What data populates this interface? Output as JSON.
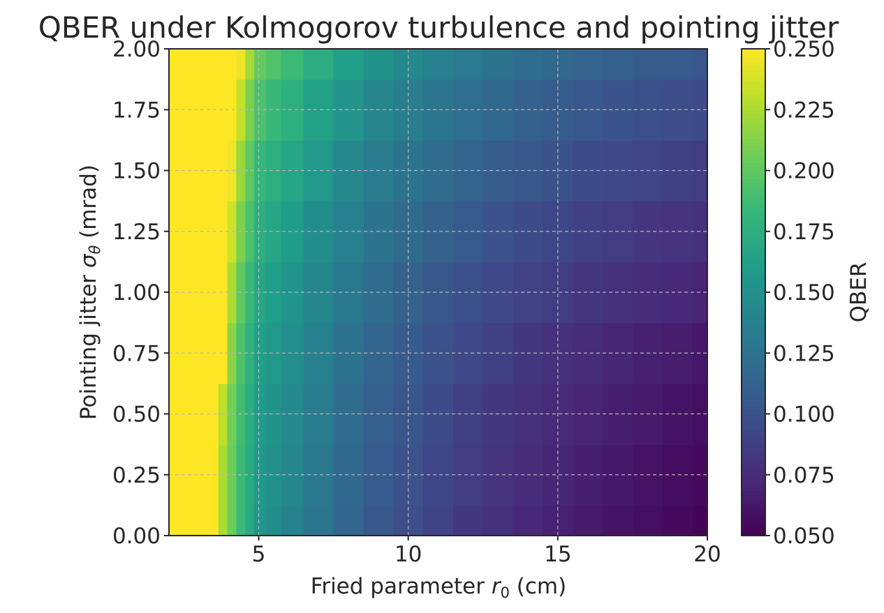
{
  "chart_data": {
    "type": "heatmap",
    "title": "QBER under Kolmogorov turbulence and pointing jitter",
    "xlabel": {
      "prefix": "Fried parameter ",
      "symbol": "r",
      "subscript": "0",
      "suffix": " (cm)"
    },
    "ylabel": {
      "prefix": "Pointing jitter ",
      "symbol": "σ",
      "subscript": "θ",
      "suffix": " (mrad)"
    },
    "xlim": [
      2,
      20
    ],
    "ylim": [
      0,
      2
    ],
    "xticks": [
      5,
      10,
      15,
      20
    ],
    "xtick_labels": [
      "5",
      "10",
      "15",
      "20"
    ],
    "yticks": [
      0,
      0.25,
      0.5,
      0.75,
      1.0,
      1.25,
      1.5,
      1.75,
      2.0
    ],
    "ytick_labels": [
      "0.00",
      "0.25",
      "0.50",
      "0.75",
      "1.00",
      "1.25",
      "1.50",
      "1.75",
      "2.00"
    ],
    "grid": true,
    "colormap": "viridis",
    "colorbar": {
      "label": "QBER",
      "range": [
        0.05,
        0.25
      ],
      "ticks": [
        0.05,
        0.075,
        0.1,
        0.125,
        0.15,
        0.175,
        0.2,
        0.225,
        0.25
      ],
      "tick_labels": [
        "0.050",
        "0.075",
        "0.100",
        "0.125",
        "0.150",
        "0.175",
        "0.200",
        "0.225",
        "0.250"
      ]
    },
    "x_values": [
      2,
      2.5,
      3,
      3.5,
      3.8,
      4.1,
      4.4,
      4.7,
      5,
      5.5,
      6,
      7,
      8,
      9,
      10,
      11,
      12,
      13,
      14,
      15,
      16,
      17,
      18,
      19,
      20
    ],
    "y_values": [
      0,
      0.25,
      0.5,
      0.75,
      1.0,
      1.25,
      1.5,
      1.75,
      2.0
    ],
    "z_values": [
      [
        0.25,
        0.25,
        0.25,
        0.25,
        0.225,
        0.205,
        0.185,
        0.17,
        0.155,
        0.148,
        0.14,
        0.128,
        0.115,
        0.105,
        0.098,
        0.09,
        0.083,
        0.078,
        0.073,
        0.069,
        0.065,
        0.061,
        0.058,
        0.055,
        0.052
      ],
      [
        0.25,
        0.25,
        0.25,
        0.25,
        0.225,
        0.205,
        0.186,
        0.172,
        0.157,
        0.15,
        0.142,
        0.13,
        0.117,
        0.107,
        0.1,
        0.092,
        0.085,
        0.08,
        0.075,
        0.071,
        0.067,
        0.063,
        0.06,
        0.057,
        0.055
      ],
      [
        0.25,
        0.25,
        0.25,
        0.25,
        0.23,
        0.207,
        0.188,
        0.174,
        0.16,
        0.152,
        0.145,
        0.133,
        0.12,
        0.11,
        0.103,
        0.095,
        0.088,
        0.083,
        0.078,
        0.074,
        0.07,
        0.067,
        0.064,
        0.061,
        0.058
      ],
      [
        0.25,
        0.25,
        0.25,
        0.25,
        0.25,
        0.215,
        0.193,
        0.178,
        0.163,
        0.156,
        0.149,
        0.137,
        0.125,
        0.115,
        0.107,
        0.1,
        0.093,
        0.088,
        0.083,
        0.078,
        0.075,
        0.071,
        0.068,
        0.066,
        0.063
      ],
      [
        0.25,
        0.25,
        0.25,
        0.25,
        0.25,
        0.225,
        0.2,
        0.184,
        0.168,
        0.161,
        0.154,
        0.142,
        0.13,
        0.12,
        0.112,
        0.105,
        0.099,
        0.093,
        0.089,
        0.085,
        0.081,
        0.078,
        0.075,
        0.073,
        0.07
      ],
      [
        0.25,
        0.25,
        0.25,
        0.25,
        0.25,
        0.235,
        0.21,
        0.192,
        0.175,
        0.168,
        0.16,
        0.148,
        0.137,
        0.127,
        0.119,
        0.112,
        0.106,
        0.1,
        0.096,
        0.092,
        0.088,
        0.085,
        0.082,
        0.08,
        0.078
      ],
      [
        0.25,
        0.25,
        0.25,
        0.25,
        0.25,
        0.245,
        0.22,
        0.2,
        0.183,
        0.175,
        0.168,
        0.156,
        0.144,
        0.134,
        0.127,
        0.12,
        0.114,
        0.108,
        0.104,
        0.1,
        0.096,
        0.093,
        0.091,
        0.088,
        0.086
      ],
      [
        0.25,
        0.25,
        0.25,
        0.25,
        0.25,
        0.25,
        0.232,
        0.21,
        0.192,
        0.184,
        0.176,
        0.164,
        0.153,
        0.143,
        0.135,
        0.128,
        0.122,
        0.117,
        0.112,
        0.108,
        0.105,
        0.102,
        0.099,
        0.097,
        0.095
      ],
      [
        0.25,
        0.25,
        0.25,
        0.25,
        0.25,
        0.25,
        0.245,
        0.222,
        0.202,
        0.194,
        0.186,
        0.174,
        0.162,
        0.152,
        0.144,
        0.137,
        0.131,
        0.126,
        0.121,
        0.117,
        0.114,
        0.111,
        0.108,
        0.106,
        0.104
      ]
    ]
  }
}
